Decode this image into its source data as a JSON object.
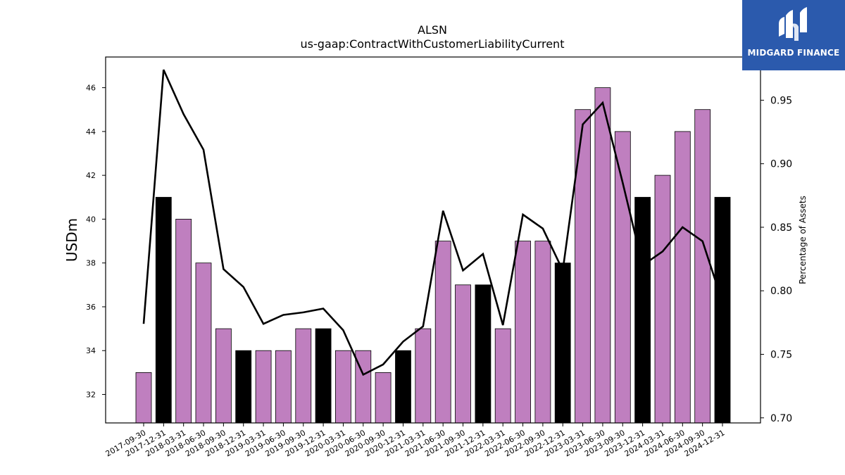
{
  "header": {
    "title": "ALSN",
    "subtitle": "us-gaap:ContractWithCustomerLiabilityCurrent"
  },
  "logo": {
    "text": "MIDGARD FINANCE",
    "background": "#2b5aad"
  },
  "chart_data": {
    "type": "bar",
    "categories": [
      "2017-09-30",
      "2017-12-31",
      "2018-03-31",
      "2018-06-30",
      "2018-09-30",
      "2018-12-31",
      "2019-03-31",
      "2019-06-30",
      "2019-09-30",
      "2019-12-31",
      "2020-03-31",
      "2020-06-30",
      "2020-09-30",
      "2020-12-31",
      "2021-03-31",
      "2021-06-30",
      "2021-09-30",
      "2021-12-31",
      "2022-03-31",
      "2022-06-30",
      "2022-09-30",
      "2022-12-31",
      "2023-03-31",
      "2023-06-30",
      "2023-09-30",
      "2023-12-31",
      "2024-03-31",
      "2024-06-30",
      "2024-09-30",
      "2024-12-31"
    ],
    "series": [
      {
        "axis": "left",
        "type": "bar",
        "values": [
          33,
          41,
          40,
          38,
          35,
          34,
          34,
          34,
          35,
          35,
          34,
          34,
          33,
          34,
          35,
          39,
          37,
          37,
          35,
          39,
          39,
          38,
          45,
          46,
          44,
          41,
          42,
          44,
          45,
          41
        ],
        "highlight": [
          false,
          true,
          false,
          false,
          false,
          true,
          false,
          false,
          false,
          true,
          false,
          false,
          false,
          true,
          false,
          false,
          false,
          true,
          false,
          false,
          false,
          true,
          false,
          false,
          false,
          true,
          false,
          false,
          false,
          true
        ]
      },
      {
        "axis": "right",
        "type": "line",
        "values": [
          0.774,
          0.974,
          0.939,
          0.911,
          0.817,
          0.803,
          0.774,
          0.781,
          0.783,
          0.786,
          0.769,
          0.734,
          0.742,
          0.76,
          0.772,
          0.863,
          0.816,
          0.829,
          0.773,
          0.86,
          0.849,
          0.816,
          0.931,
          0.948,
          0.885,
          0.82,
          0.831,
          0.85,
          0.839,
          0.791
        ]
      }
    ],
    "ylabel": "USDm",
    "y2label": "Percentage of Assets",
    "ylim": [
      30.7,
      47.4
    ],
    "yticks": [
      32,
      34,
      36,
      38,
      40,
      42,
      44,
      46
    ],
    "y2lim": [
      0.696,
      0.984
    ],
    "y2ticks": [
      "0.70",
      "0.75",
      "0.80",
      "0.85",
      "0.90",
      "0.95"
    ],
    "colors": {
      "bar": "#bf7fbf",
      "bar_highlight": "#000000",
      "line": "#000000"
    },
    "grid": false
  }
}
